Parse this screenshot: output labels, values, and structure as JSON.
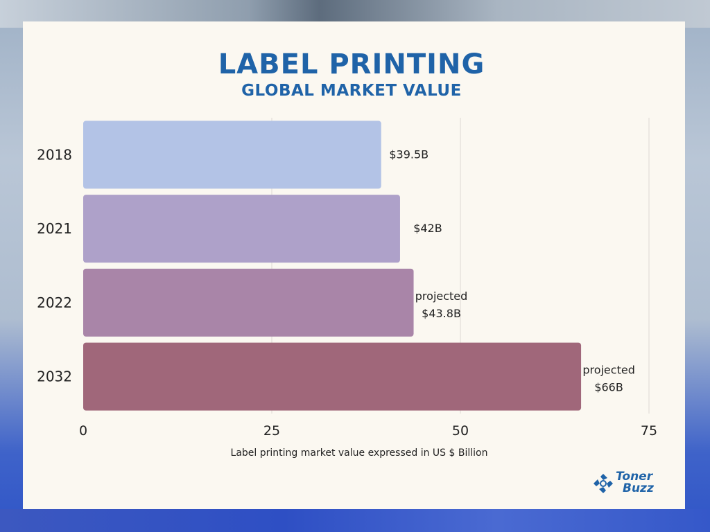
{
  "header": {
    "title": "LABEL PRINTING",
    "subtitle": "GLOBAL MARKET VALUE"
  },
  "chart_data": {
    "type": "bar",
    "orientation": "horizontal",
    "categories": [
      "2018",
      "2021",
      "2022",
      "2032"
    ],
    "values": [
      39.5,
      42,
      43.8,
      66
    ],
    "data_labels": [
      [
        "$39.5B"
      ],
      [
        "$42B"
      ],
      [
        "projected",
        "$43.8B"
      ],
      [
        "projected",
        "$66B"
      ]
    ],
    "bar_colors": [
      "#b3c3e6",
      "#aea1c9",
      "#a985a8",
      "#a0677a"
    ],
    "xlabel": "Label printing market value expressed in US $ Billion",
    "ylabel": "",
    "xlim": [
      0,
      75
    ],
    "xticks": [
      0,
      25,
      50,
      75
    ],
    "grid": true,
    "legend": "none"
  },
  "logo": {
    "line1": "Toner",
    "line2": "Buzz",
    "color": "#1f63a8"
  }
}
